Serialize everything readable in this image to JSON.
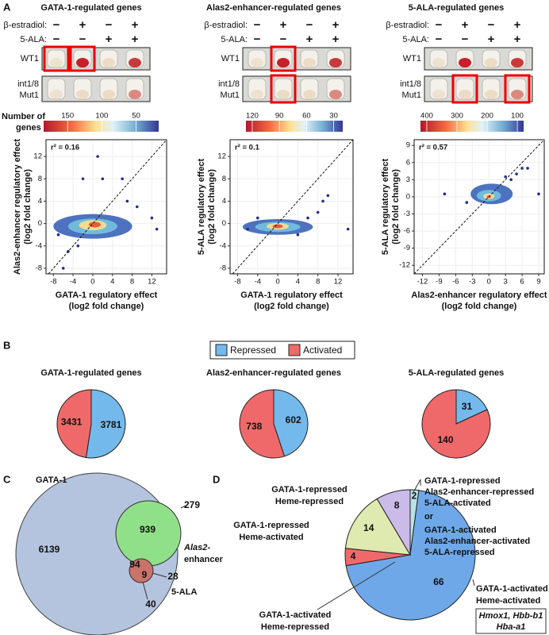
{
  "panel_labels": [
    "A",
    "B",
    "C",
    "D"
  ],
  "treatments": {
    "estradiol": "β-estradiol:",
    "ala": "5-ALA:",
    "estradiol_signs": [
      "−",
      "+",
      "−",
      "+"
    ],
    "ala_signs": [
      "−",
      "−",
      "+",
      "+"
    ],
    "wt": "WT1",
    "mut": [
      "int1/8",
      "Mut1"
    ]
  },
  "colorbar_title": [
    "Number of",
    "genes"
  ],
  "colorbars": [
    {
      "ticks": [
        150,
        100,
        50
      ],
      "range": [
        185,
        17
      ]
    },
    {
      "ticks": [
        120,
        90,
        60,
        30
      ],
      "range": [
        127,
        20
      ]
    },
    {
      "ticks": [
        400,
        300,
        200,
        100
      ],
      "range": [
        421,
        79
      ]
    }
  ],
  "chart_data": [
    {
      "type": "scatter",
      "title": "GATA-1-regulated genes",
      "annotation": "r² = 0.16",
      "xlabel": [
        "GATA-1 regulatory effect",
        "(log2 fold change)"
      ],
      "ylabel": [
        "Alas2-enhancer regulatory effect",
        "(log2 fold change)"
      ],
      "xlim": [
        -9.5,
        15
      ],
      "ylim": [
        -9,
        15
      ],
      "xticks": [
        -8,
        -4,
        0,
        4,
        8,
        12
      ],
      "yticks": [
        -8,
        -4,
        0,
        4,
        8,
        12
      ],
      "x": [
        1,
        2,
        6,
        -2,
        12,
        13,
        -6,
        -5,
        9,
        -7,
        7,
        -3
      ],
      "y": [
        12,
        8,
        8,
        8,
        1,
        -1,
        -8,
        -5,
        3,
        -2,
        4,
        -4
      ],
      "color": "#1f2e8a"
    },
    {
      "type": "scatter",
      "title": "Alas2-enhancer-regulated genes",
      "annotation": "r² = 0.1",
      "xlabel": [
        "GATA-1 regulatory effect",
        "(log2 fold change)"
      ],
      "ylabel": [
        "5-ALA regulatory effect",
        "(log2 fold change)"
      ],
      "xlim": [
        -9.5,
        15
      ],
      "ylim": [
        -9,
        15
      ],
      "xticks": [
        -8,
        -4,
        0,
        4,
        8,
        12
      ],
      "yticks": [
        -8,
        -4,
        0,
        4,
        8,
        12
      ],
      "x": [
        10,
        14,
        -6,
        8,
        4,
        -4,
        9,
        6
      ],
      "y": [
        5,
        -1,
        -1,
        2,
        -2,
        1,
        4,
        1
      ],
      "color": "#1f2e8a"
    },
    {
      "type": "scatter",
      "title": "5-ALA-regulated genes",
      "annotation": "r² = 0.57",
      "xlabel": [
        "Alas2-enhancer regulatory effect",
        "(log2 fold change)"
      ],
      "ylabel": [
        "5-ALA regulatory effect",
        "(log2 fold change)"
      ],
      "xlim": [
        -13.5,
        10
      ],
      "ylim": [
        -13.5,
        10
      ],
      "xticks": [
        -12,
        -9,
        -6,
        -3,
        0,
        3,
        6,
        9
      ],
      "yticks": [
        -12,
        -9,
        -6,
        -3,
        0,
        3,
        6,
        9
      ],
      "x": [
        -8,
        9,
        7,
        6,
        5,
        -4,
        4,
        3
      ],
      "y": [
        0.5,
        0.5,
        5,
        5,
        4,
        -1,
        3,
        3.5
      ],
      "color": "#1f2e8a"
    },
    {
      "type": "pie",
      "title": "GATA-1-regulated genes",
      "categories": [
        "Repressed",
        "Activated"
      ],
      "values": [
        3781,
        3431
      ],
      "colors": [
        "#74b9ec",
        "#f0696a"
      ]
    },
    {
      "type": "pie",
      "title": "Alas2-enhancer-regulated genes",
      "categories": [
        "Repressed",
        "Activated"
      ],
      "values": [
        602,
        738
      ],
      "colors": [
        "#74b9ec",
        "#f0696a"
      ]
    },
    {
      "type": "pie",
      "title": "5-ALA-regulated genes",
      "categories": [
        "Repressed",
        "Activated"
      ],
      "values": [
        31,
        140
      ],
      "colors": [
        "#74b9ec",
        "#f0696a"
      ]
    },
    {
      "type": "pie",
      "values": [
        2,
        66,
        4,
        14,
        8
      ],
      "colors": [
        "#b9e2e6",
        "#6fa8e8",
        "#f0696a",
        "#dfeab0",
        "#cbbbe8"
      ],
      "labels": [
        [
          "GATA-1-repressed",
          "Alas2-enhancer-repressed",
          "5-ALA-activated",
          "or",
          "GATA-1-activated",
          "Alas2-enhancer-activated",
          "5-ALA-repressed"
        ],
        [
          "GATA-1-activated",
          "Heme-activated"
        ],
        [
          "GATA-1-activated",
          "Heme-repressed"
        ],
        [
          "GATA-1-repressed",
          "Heme-activated"
        ],
        [
          "GATA-1-repressed",
          "Heme-repressed"
        ]
      ],
      "genes": [
        "Hmox1, Hbb-b1",
        "Hba-a1"
      ]
    }
  ],
  "venn": {
    "set_labels": [
      "GATA-1",
      [
        "Alas2-",
        "enhancer"
      ],
      "5-ALA"
    ],
    "counts": [
      6139,
      939,
      279,
      94,
      28,
      9,
      40
    ]
  }
}
